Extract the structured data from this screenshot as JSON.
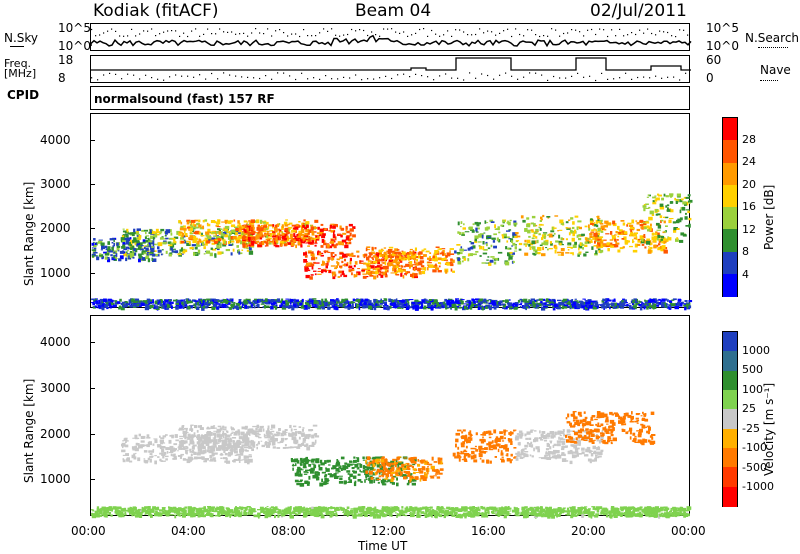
{
  "header": {
    "site": "Kodiak (fitACF)",
    "beam": "Beam 04",
    "date": "02/Jul/2011"
  },
  "summary": {
    "nsky_label": "N.Sky",
    "nsky_ticks": [
      "10^5",
      "10^0"
    ],
    "nsearch_label": "N.Search",
    "nsearch_ticks": [
      "10^5",
      "10^0"
    ],
    "freq_label": "Freq.",
    "freq_unit": "[MHz]",
    "freq_ticks": [
      "18",
      "8"
    ],
    "nave_label": "Nave",
    "nave_ticks": [
      "60",
      "0"
    ],
    "cpid_label": "CPID",
    "cpid_value": "normalsound (fast) 157 RF"
  },
  "chart_data": [
    {
      "type": "heatmap",
      "panel": "power",
      "ylabel": "Slant Range [km]",
      "ylim": [
        200,
        4600
      ],
      "yticks": [
        "4000",
        "3000",
        "2000",
        "1000"
      ],
      "xlim": [
        0,
        24
      ],
      "colorbar": {
        "label": "Power [dB]",
        "ticks": [
          "28",
          "24",
          "20",
          "16",
          "12",
          "8",
          "4"
        ],
        "colors": [
          "#ff0000",
          "#ff5500",
          "#ff9a00",
          "#ffd000",
          "#9bd13c",
          "#2f8f2f",
          "#1f3fbf",
          "#0000ff"
        ]
      },
      "bands": [
        {
          "t0": 1.2,
          "t1": 6.5,
          "r0": 1400,
          "r1": 2000,
          "level": 12
        },
        {
          "t0": 3.5,
          "t1": 9.0,
          "r0": 1700,
          "r1": 2200,
          "level": 20
        },
        {
          "t0": 6.0,
          "t1": 10.5,
          "r0": 1600,
          "r1": 2100,
          "level": 26
        },
        {
          "t0": 8.5,
          "t1": 13.0,
          "r0": 900,
          "r1": 1500,
          "level": 26
        },
        {
          "t0": 11.0,
          "t1": 14.5,
          "r0": 1000,
          "r1": 1600,
          "level": 22
        },
        {
          "t0": 14.5,
          "t1": 17.0,
          "r0": 1200,
          "r1": 2200,
          "level": 12
        },
        {
          "t0": 17.0,
          "t1": 20.5,
          "r0": 1400,
          "r1": 2300,
          "level": 16
        },
        {
          "t0": 20.0,
          "t1": 23.0,
          "r0": 1500,
          "r1": 2200,
          "level": 22
        },
        {
          "t0": 22.0,
          "t1": 24.0,
          "r0": 1700,
          "r1": 2800,
          "level": 14
        },
        {
          "t0": 0.0,
          "t1": 2.5,
          "r0": 1300,
          "r1": 1800,
          "level": 8
        },
        {
          "t0": 0.0,
          "t1": 24.0,
          "r0": 200,
          "r1": 400,
          "level": 6
        }
      ]
    },
    {
      "type": "heatmap",
      "panel": "velocity",
      "ylabel": "Slant Range [km]",
      "ylim": [
        200,
        4600
      ],
      "yticks": [
        "4000",
        "3000",
        "2000",
        "1000"
      ],
      "xlim": [
        0,
        24
      ],
      "xticks": [
        "00:00",
        "04:00",
        "08:00",
        "12:00",
        "16:00",
        "20:00",
        "00:00"
      ],
      "xlabel": "Time UT",
      "colorbar": {
        "label": "Velocity [m s⁻¹]",
        "ticks": [
          "1000",
          "500",
          "100",
          "25",
          "-25",
          "-100",
          "-500",
          "-1000"
        ],
        "colors": [
          "#1f3fbf",
          "#2f6f8f",
          "#2f8f2f",
          "#7fd24f",
          "#c8c8c8",
          "#ffb000",
          "#ff7a00",
          "#ff3a00",
          "#ff0000"
        ]
      },
      "bands": [
        {
          "t0": 1.2,
          "t1": 6.5,
          "r0": 1400,
          "r1": 2000,
          "level": 0
        },
        {
          "t0": 3.5,
          "t1": 9.0,
          "r0": 1700,
          "r1": 2200,
          "level": 0
        },
        {
          "t0": 8.0,
          "t1": 13.0,
          "r0": 900,
          "r1": 1500,
          "level": 300
        },
        {
          "t0": 11.0,
          "t1": 14.0,
          "r0": 1000,
          "r1": 1500,
          "level": -150
        },
        {
          "t0": 14.5,
          "t1": 17.0,
          "r0": 1400,
          "r1": 2100,
          "level": -300
        },
        {
          "t0": 17.0,
          "t1": 20.5,
          "r0": 1400,
          "r1": 2100,
          "level": 0
        },
        {
          "t0": 19.0,
          "t1": 22.5,
          "r0": 1800,
          "r1": 2500,
          "level": -300
        },
        {
          "t0": 0.0,
          "t1": 24.0,
          "r0": 200,
          "r1": 400,
          "level": 60
        }
      ]
    }
  ]
}
